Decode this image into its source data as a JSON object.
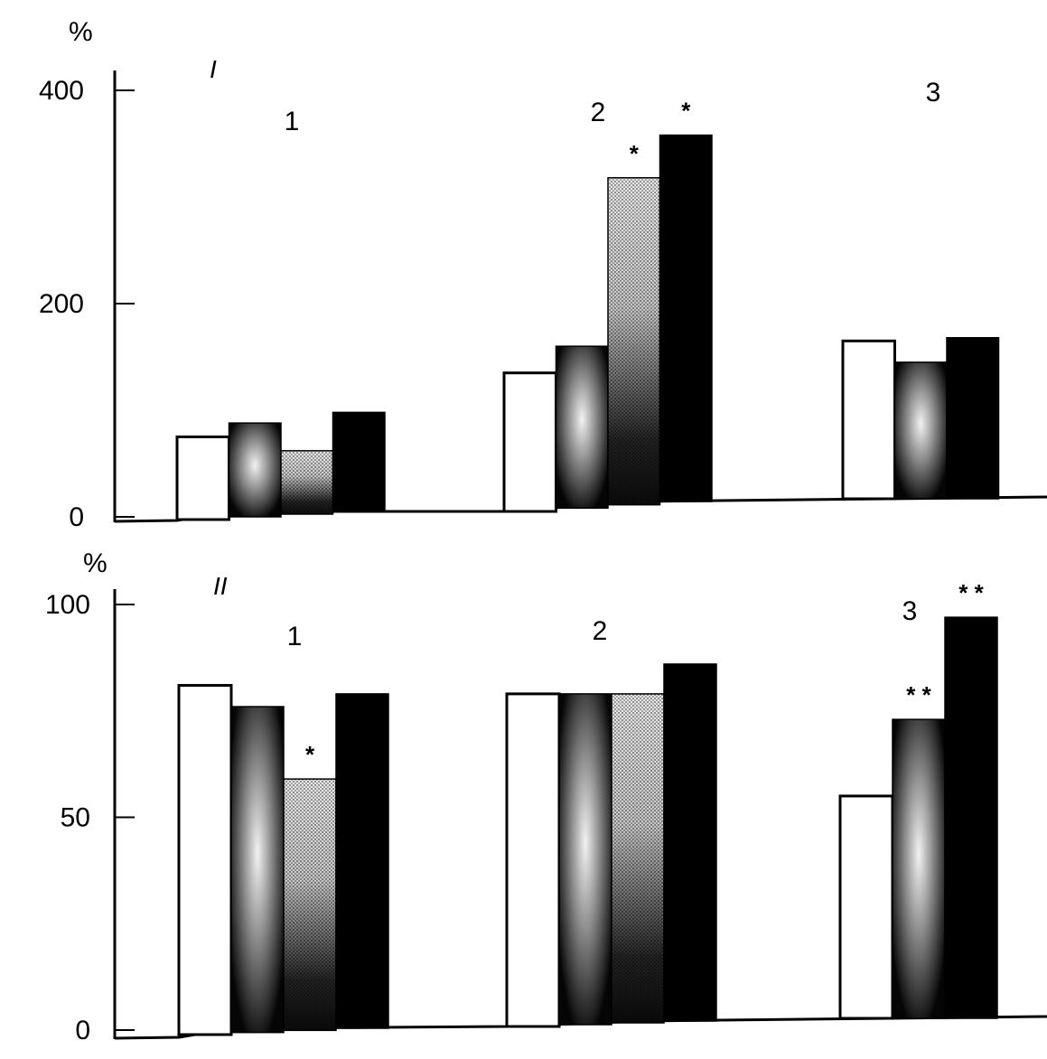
{
  "chart_data": [
    {
      "type": "bar",
      "panel_label": "I",
      "unit": "%",
      "ylim": [
        0,
        400
      ],
      "yticks": [
        "0",
        "200",
        "400"
      ],
      "categories": [
        "1",
        "2",
        "3"
      ],
      "series": [
        {
          "fill": "white",
          "values": [
            75,
            135,
            165
          ]
        },
        {
          "fill": "radial-grey",
          "values": [
            88,
            160,
            145
          ]
        },
        {
          "fill": "stipple-grey",
          "values": [
            62,
            318,
            null
          ]
        },
        {
          "fill": "black",
          "values": [
            98,
            358,
            168
          ]
        }
      ],
      "significance": [
        {
          "category": "2",
          "series_index": 2,
          "text": "*"
        },
        {
          "category": "2",
          "series_index": 3,
          "text": "*"
        }
      ]
    },
    {
      "type": "bar",
      "panel_label": "II",
      "unit": "%",
      "ylim": [
        0,
        100
      ],
      "yticks": [
        "0",
        "50",
        "100"
      ],
      "categories": [
        "1",
        "2",
        "3"
      ],
      "series": [
        {
          "fill": "white",
          "values": [
            81,
            79,
            55
          ]
        },
        {
          "fill": "radial-grey",
          "values": [
            76,
            79,
            73
          ]
        },
        {
          "fill": "stipple-grey",
          "values": [
            59,
            79,
            null
          ]
        },
        {
          "fill": "black",
          "values": [
            79,
            86,
            97
          ]
        }
      ],
      "significance": [
        {
          "category": "1",
          "series_index": 2,
          "text": "*"
        },
        {
          "category": "3",
          "series_index": 1,
          "text": "* *"
        },
        {
          "category": "3",
          "series_index": 3,
          "text": "* *"
        }
      ]
    }
  ]
}
